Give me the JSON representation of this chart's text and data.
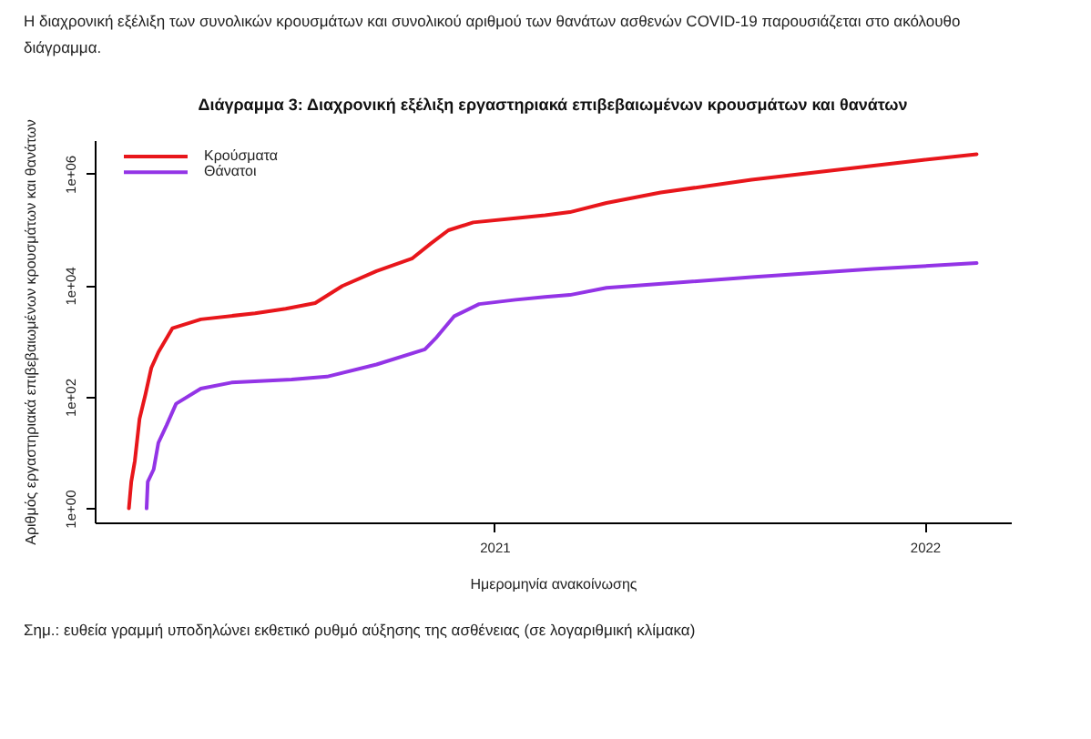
{
  "chart_data": {
    "type": "line",
    "title": "Διάγραμμα 3: Διαχρονική εξέλιξη εργαστηριακά επιβεβαιωμένων κρουσμάτων και θανάτων",
    "xlabel": "Ημερομηνία ανακοίνωσης",
    "ylabel": "Αριθμός εργαστηριακά επιβεβαιωμένων κρουσμάτων και θανάτων",
    "annotations": [
      "Η διαχρονική εξέλιξη των συνολικών κρουσμάτων και συνολικού αριθμού των θανάτων ασθενών COVID-19 παρουσιάζεται στο ακόλουθο διάγραμμα.",
      "Σημ.: ευθεία γραμμή υποδηλώνει εκθετικό ρυθμό αύξησης της ασθένειας (σε λογαριθμική κλίμακα)"
    ],
    "series": [
      {
        "name": "Κρούσματα",
        "color": "#e8161b",
        "x": [
          "2020-02-26",
          "2020-02-28",
          "2020-03-02",
          "2020-03-06",
          "2020-03-11",
          "2020-03-16",
          "2020-03-22",
          "2020-04-03",
          "2020-04-27",
          "2020-06-12",
          "2020-07-08",
          "2020-08-02",
          "2020-08-25",
          "2020-09-23",
          "2020-10-23",
          "2020-11-08",
          "2020-11-23",
          "2020-12-14",
          "2021-01-19",
          "2021-02-13",
          "2021-03-06",
          "2021-04-06",
          "2021-05-22",
          "2021-08-07",
          "2021-10-23",
          "2021-12-29",
          "2022-02-14"
        ],
        "values": [
          1,
          3,
          7,
          40,
          110,
          330,
          630,
          1700,
          2450,
          3150,
          3800,
          4800,
          9700,
          18000,
          30000,
          56000,
          97000,
          134000,
          160000,
          180000,
          205000,
          300000,
          460000,
          780000,
          1200000,
          1750000,
          2240000
        ]
      },
      {
        "name": "Θάνατοι",
        "color": "#9334e6",
        "x": [
          "2020-03-12",
          "2020-03-13",
          "2020-03-18",
          "2020-03-22",
          "2020-03-29",
          "2020-04-06",
          "2020-04-27",
          "2020-05-23",
          "2020-07-13",
          "2020-08-12",
          "2020-09-23",
          "2020-11-03",
          "2020-11-13",
          "2020-11-28",
          "2020-12-19",
          "2021-01-19",
          "2021-02-13",
          "2021-03-06",
          "2021-04-06",
          "2021-08-07",
          "2021-11-18",
          "2022-02-14"
        ],
        "values": [
          1,
          3,
          5,
          15,
          31,
          75,
          140,
          180,
          205,
          230,
          380,
          710,
          1170,
          2800,
          4600,
          5500,
          6200,
          6700,
          9000,
          14000,
          19600,
          25000
        ]
      }
    ],
    "xlim": [
      "2020-01-28",
      "2022-03-15"
    ],
    "xticks": [
      "2021",
      "2022"
    ],
    "ylim": [
      0.56,
      4000000
    ],
    "yticks": [
      {
        "value": 1,
        "label": "1e+00"
      },
      {
        "value": 100,
        "label": "1e+02"
      },
      {
        "value": 10000,
        "label": "1e+04"
      },
      {
        "value": 1000000,
        "label": "1e+06"
      }
    ],
    "log": true,
    "grid": false,
    "legend": "top left"
  }
}
